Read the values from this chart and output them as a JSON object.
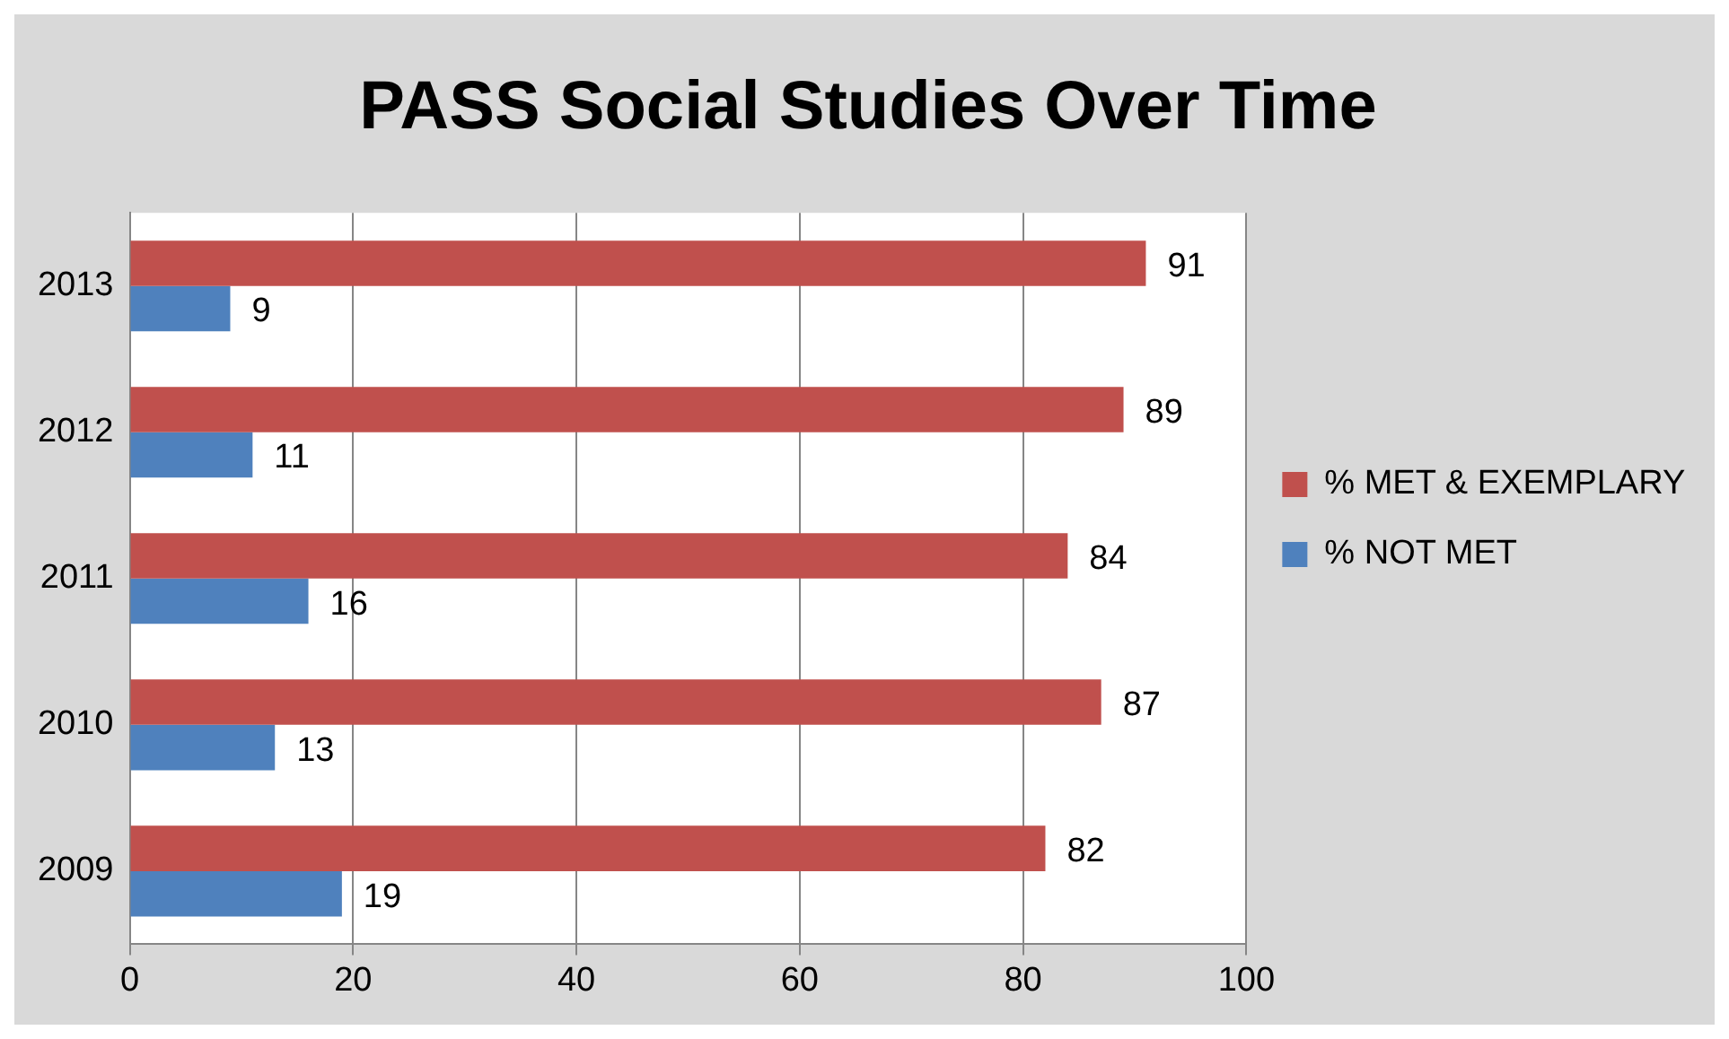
{
  "chart_data": {
    "type": "bar",
    "title": "PASS Social Studies Over Time",
    "orientation": "horizontal",
    "categories": [
      "2013",
      "2012",
      "2011",
      "2010",
      "2009"
    ],
    "series": [
      {
        "name": "% MET & EXEMPLARY",
        "color": "#c0504d",
        "values": [
          91,
          89,
          84,
          87,
          82
        ]
      },
      {
        "name": "% NOT MET",
        "color": "#4f81bd",
        "values": [
          9,
          11,
          16,
          13,
          19
        ]
      }
    ],
    "xlim": [
      0,
      100
    ],
    "xticks": [
      0,
      20,
      40,
      60,
      80,
      100
    ],
    "grid": "x",
    "legend": "right",
    "data_labels": true
  }
}
